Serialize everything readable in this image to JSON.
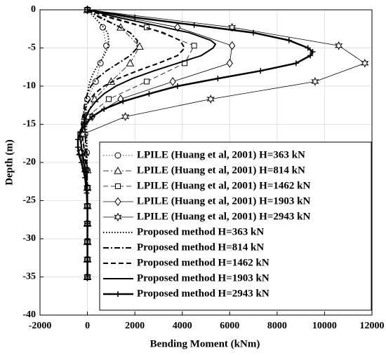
{
  "chart_data": {
    "type": "line",
    "x_label": "Bending Moment (kNm)",
    "y_label": "Depth (m)",
    "xlim": [
      -2000,
      12000
    ],
    "xticks": [
      -2000,
      0,
      2000,
      4000,
      6000,
      8000,
      10000,
      12000
    ],
    "ylim": [
      -40,
      0
    ],
    "yticks": [
      0,
      -5,
      -10,
      -15,
      -20,
      -25,
      -30,
      -35,
      -40
    ],
    "grid": true,
    "legend": "lower right",
    "series": [
      {
        "name": "LPILE (Huang et al, 2001) H=363 kN",
        "color": "#000000",
        "width": 0.8,
        "dash": "dotted",
        "marker": "circle",
        "x": [
          0,
          650,
          800,
          550,
          350,
          0,
          -100,
          -100,
          -30,
          0,
          0,
          0,
          0,
          0,
          0,
          0
        ],
        "y": [
          0,
          -2.3,
          -4.7,
          -7,
          -9.4,
          -11.7,
          -14,
          -16.3,
          -18.7,
          -21,
          -23.3,
          -25.7,
          -28,
          -30.4,
          -32.7,
          -35
        ]
      },
      {
        "name": "LPILE (Huang et al, 2001) H=814 kN",
        "color": "#000000",
        "width": 0.8,
        "dashdot": true,
        "dash": "dashdot",
        "marker": "triangle",
        "x": [
          0,
          1400,
          2200,
          1800,
          1000,
          300,
          -100,
          -200,
          -100,
          0,
          0,
          0,
          0,
          0,
          0,
          0
        ],
        "y": [
          0,
          -2.3,
          -4.8,
          -7,
          -9.4,
          -11.7,
          -14,
          -16.3,
          -18.7,
          -21,
          -23.3,
          -25.7,
          -28,
          -30.4,
          -32.7,
          -35
        ]
      },
      {
        "name": "LPILE (Huang et al, 2001) H=1462 kN",
        "color": "#000000",
        "width": 0.8,
        "dash": "dashed",
        "marker": "square",
        "x": [
          0,
          2500,
          4500,
          4100,
          2500,
          900,
          0,
          -300,
          -200,
          -50,
          0,
          0,
          0,
          0,
          0,
          0
        ],
        "y": [
          0,
          -2.3,
          -4.7,
          -7,
          -9.4,
          -11.7,
          -14,
          -16.3,
          -18.7,
          -21,
          -23.3,
          -25.7,
          -28,
          -30.4,
          -32.7,
          -35
        ]
      },
      {
        "name": "LPILE (Huang et al, 2001) H=1903 kN",
        "color": "#000000",
        "width": 0.8,
        "dash": "solid",
        "marker": "diamond",
        "x": [
          0,
          3800,
          6100,
          6000,
          3600,
          1400,
          200,
          -300,
          -250,
          -100,
          0,
          0,
          0,
          0,
          0,
          0
        ],
        "y": [
          0,
          -2.3,
          -4.7,
          -7,
          -9.4,
          -11.7,
          -14,
          -16.3,
          -18.7,
          -21,
          -23.3,
          -25.7,
          -28,
          -30.4,
          -32.7,
          -35
        ]
      },
      {
        "name": "LPILE (Huang et al, 2001) H=2943 kN",
        "color": "#000000",
        "width": 0.8,
        "dash": "solid",
        "marker": "star",
        "x": [
          0,
          6100,
          10600,
          11700,
          9600,
          5200,
          1600,
          -200,
          -300,
          -100,
          0,
          0,
          0,
          0,
          0,
          0
        ],
        "y": [
          0,
          -2.3,
          -4.7,
          -7,
          -9.4,
          -11.7,
          -14,
          -16.3,
          -18.7,
          -21,
          -23.3,
          -25.7,
          -28,
          -30.4,
          -32.7,
          -35
        ]
      },
      {
        "name": "Proposed method H=363 kN",
        "color": "#000000",
        "width": 2,
        "dash": "dotted",
        "marker": "none",
        "x": [
          0,
          300,
          600,
          850,
          900,
          850,
          700,
          500,
          300,
          150,
          50,
          -50,
          -60,
          -20,
          0,
          0
        ],
        "y": [
          0,
          -1,
          -2,
          -3,
          -4,
          -5,
          -6,
          -7,
          -8,
          -9,
          -10,
          -12,
          -14,
          -18,
          -24,
          -35
        ]
      },
      {
        "name": "Proposed method H=814 kN",
        "color": "#000000",
        "width": 2,
        "dash": "dashdot",
        "marker": "none",
        "x": [
          0,
          500,
          1200,
          1800,
          2100,
          2100,
          1800,
          1300,
          800,
          400,
          150,
          0,
          -100,
          -150,
          -150,
          -100,
          -30,
          0,
          0
        ],
        "y": [
          0,
          -1,
          -2,
          -3,
          -4,
          -5,
          -6,
          -7,
          -8,
          -9,
          -10,
          -11,
          -12,
          -13,
          -14,
          -16,
          -20,
          -24,
          -35
        ]
      },
      {
        "name": "Proposed method H=1462 kN",
        "color": "#000000",
        "width": 2,
        "dash": "dashed",
        "marker": "none",
        "x": [
          0,
          900,
          2100,
          3200,
          3900,
          4100,
          3800,
          3000,
          2100,
          1300,
          700,
          300,
          50,
          -100,
          -200,
          -250,
          -250,
          -150,
          -80,
          0,
          0
        ],
        "y": [
          0,
          -1,
          -2,
          -3,
          -4,
          -5,
          -6,
          -7,
          -8,
          -9,
          -10,
          -11,
          -12,
          -13,
          -14,
          -15,
          -16,
          -18,
          -20,
          -24,
          -35
        ]
      },
      {
        "name": "Proposed method H=1903 kN",
        "color": "#000000",
        "width": 2,
        "dash": "solid",
        "marker": "none",
        "x": [
          0,
          1300,
          2800,
          4300,
          5200,
          5400,
          5300,
          4800,
          3800,
          2800,
          1900,
          1200,
          700,
          350,
          100,
          -50,
          -200,
          -300,
          -300,
          -250,
          -150,
          -30,
          0,
          0
        ],
        "y": [
          0,
          -1,
          -2,
          -3,
          -4,
          -4.5,
          -5,
          -6,
          -7,
          -8,
          -9,
          -10,
          -11,
          -12,
          -13,
          -14,
          -15,
          -16,
          -17,
          -18,
          -20,
          -23,
          -26,
          -35
        ]
      },
      {
        "name": "Proposed method H=2943 kN",
        "color": "#000000",
        "width": 2.5,
        "dash": "solid",
        "marker": "plus",
        "x": [
          0,
          2000,
          4500,
          7000,
          8500,
          9300,
          9500,
          9400,
          8800,
          7300,
          5500,
          3800,
          2600,
          1500,
          700,
          200,
          -100,
          -300,
          -400,
          -400,
          -350,
          -250,
          -100,
          -30,
          0,
          0,
          0,
          0
        ],
        "y": [
          0,
          -1,
          -2,
          -3,
          -4,
          -5,
          -5.5,
          -6,
          -7,
          -8,
          -9,
          -10,
          -11,
          -12,
          -13,
          -14,
          -15,
          -16,
          -17,
          -18,
          -19,
          -20,
          -22,
          -24,
          -26,
          -28,
          -30,
          -35
        ]
      }
    ]
  }
}
